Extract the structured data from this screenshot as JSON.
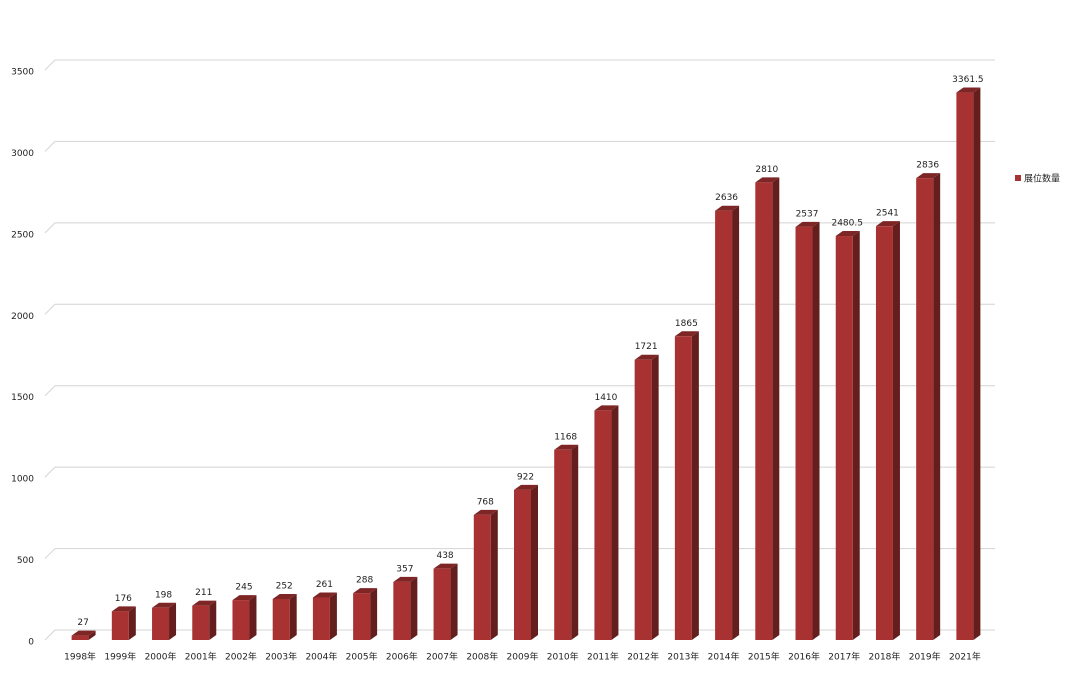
{
  "chart_data": {
    "type": "bar",
    "categories": [
      "1998年",
      "1999年",
      "2000年",
      "2001年",
      "2002年",
      "2003年",
      "2004年",
      "2005年",
      "2006年",
      "2007年",
      "2008年",
      "2009年",
      "2010年",
      "2011年",
      "2012年",
      "2013年",
      "2014年",
      "2015年",
      "2016年",
      "2017年",
      "2018年",
      "2019年",
      "2021年"
    ],
    "series": [
      {
        "name": "展位数量",
        "color": "#a83232",
        "values": [
          27,
          176,
          198,
          211,
          245,
          252,
          261,
          288,
          357,
          438,
          768,
          922,
          1168,
          1410,
          1721,
          1865,
          2636,
          2810,
          2537,
          2480.5,
          2541,
          2836,
          3361.5
        ]
      }
    ],
    "ylim": [
      0,
      3500
    ],
    "yticks": [
      0,
      500,
      1000,
      1500,
      2000,
      2500,
      3000,
      3500
    ],
    "grid": true,
    "legend": "right",
    "show_value_labels": true
  }
}
